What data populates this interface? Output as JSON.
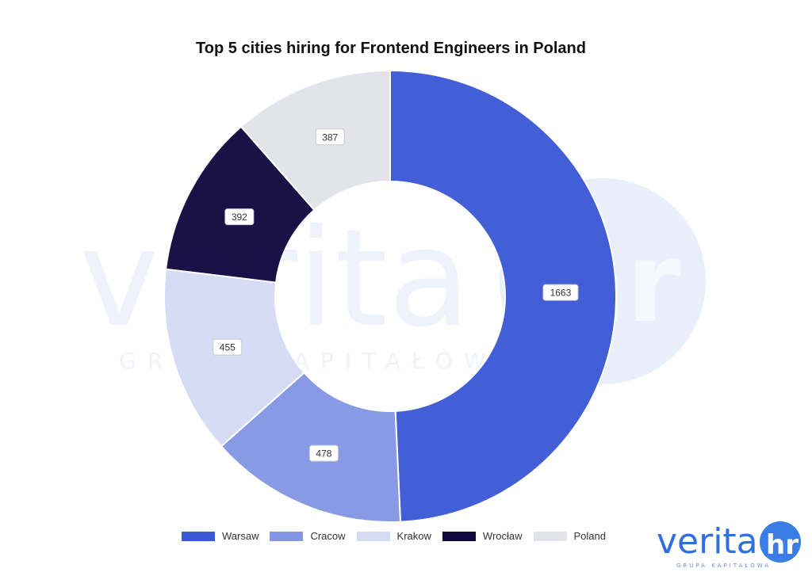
{
  "chart_data": {
    "type": "pie",
    "donut": true,
    "title": "Top 5 cities hiring for Frontend Engineers in Poland",
    "categories": [
      "Warsaw",
      "Cracow",
      "Krakow",
      "Wrocław",
      "Poland"
    ],
    "values": [
      1663,
      478,
      455,
      392,
      387
    ],
    "colors": [
      "#3b59d6",
      "#8496e4",
      "#d4dbf3",
      "#110840",
      "#e2e3e9"
    ],
    "legend_position": "bottom"
  },
  "watermark": {
    "word": "verita",
    "badge": "hr",
    "subtitle": "GRUPA KAPITAŁOWA"
  },
  "brand": {
    "word": "verita",
    "badge": "hr",
    "subtitle": "GRUPA KAPITAŁOWA",
    "color": "#2f6fe0"
  }
}
